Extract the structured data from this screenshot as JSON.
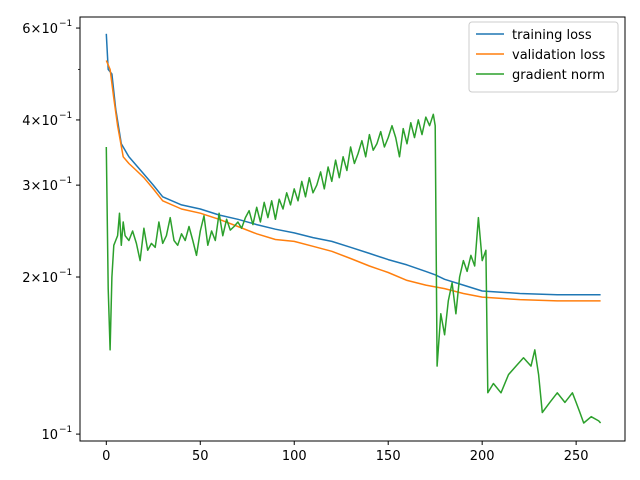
{
  "chart_data": {
    "type": "line",
    "title": "",
    "xlabel": "",
    "ylabel": "",
    "xlim": [
      -14,
      276
    ],
    "ylim": [
      0.097,
      0.63
    ],
    "yscale": "log",
    "grid": false,
    "legend_position": "top-right",
    "x_ticks": [
      {
        "value": 0,
        "label": "0"
      },
      {
        "value": 50,
        "label": "50"
      },
      {
        "value": 100,
        "label": "100"
      },
      {
        "value": 150,
        "label": "150"
      },
      {
        "value": 200,
        "label": "200"
      },
      {
        "value": 250,
        "label": "250"
      }
    ],
    "y_ticks": [
      {
        "value": 0.1,
        "label_base": "10",
        "label_exp": "−1",
        "label_prefix": ""
      },
      {
        "value": 0.2,
        "label_base": "10",
        "label_exp": "−1",
        "label_prefix": "2×"
      },
      {
        "value": 0.3,
        "label_base": "10",
        "label_exp": "−1",
        "label_prefix": "3×"
      },
      {
        "value": 0.4,
        "label_base": "10",
        "label_exp": "−1",
        "label_prefix": "4×"
      },
      {
        "value": 0.6,
        "label_base": "10",
        "label_exp": "−1",
        "label_prefix": "6×"
      }
    ],
    "y_minor_ticks": [
      0.5
    ],
    "series": [
      {
        "name": "training loss",
        "color": "#1f77b4",
        "points": [
          [
            0,
            0.585
          ],
          [
            1,
            0.5
          ],
          [
            3,
            0.49
          ],
          [
            5,
            0.42
          ],
          [
            8,
            0.36
          ],
          [
            12,
            0.34
          ],
          [
            20,
            0.315
          ],
          [
            25,
            0.3
          ],
          [
            30,
            0.285
          ],
          [
            40,
            0.275
          ],
          [
            50,
            0.27
          ],
          [
            60,
            0.263
          ],
          [
            70,
            0.258
          ],
          [
            80,
            0.252
          ],
          [
            90,
            0.247
          ],
          [
            100,
            0.243
          ],
          [
            110,
            0.238
          ],
          [
            120,
            0.234
          ],
          [
            130,
            0.228
          ],
          [
            140,
            0.222
          ],
          [
            150,
            0.216
          ],
          [
            160,
            0.211
          ],
          [
            170,
            0.205
          ],
          [
            175,
            0.202
          ],
          [
            180,
            0.198
          ],
          [
            190,
            0.193
          ],
          [
            200,
            0.188
          ],
          [
            210,
            0.187
          ],
          [
            220,
            0.186
          ],
          [
            240,
            0.185
          ],
          [
            263,
            0.185
          ]
        ]
      },
      {
        "name": "validation loss",
        "color": "#ff7f0e",
        "points": [
          [
            0,
            0.52
          ],
          [
            1,
            0.51
          ],
          [
            2,
            0.5
          ],
          [
            4,
            0.44
          ],
          [
            6,
            0.39
          ],
          [
            9,
            0.34
          ],
          [
            12,
            0.33
          ],
          [
            16,
            0.32
          ],
          [
            20,
            0.31
          ],
          [
            25,
            0.295
          ],
          [
            30,
            0.28
          ],
          [
            40,
            0.27
          ],
          [
            50,
            0.265
          ],
          [
            60,
            0.258
          ],
          [
            70,
            0.25
          ],
          [
            80,
            0.242
          ],
          [
            90,
            0.236
          ],
          [
            100,
            0.234
          ],
          [
            110,
            0.229
          ],
          [
            120,
            0.224
          ],
          [
            130,
            0.217
          ],
          [
            140,
            0.21
          ],
          [
            150,
            0.204
          ],
          [
            160,
            0.197
          ],
          [
            170,
            0.193
          ],
          [
            180,
            0.19
          ],
          [
            190,
            0.186
          ],
          [
            200,
            0.183
          ],
          [
            210,
            0.182
          ],
          [
            220,
            0.181
          ],
          [
            240,
            0.18
          ],
          [
            263,
            0.18
          ]
        ]
      },
      {
        "name": "gradient norm",
        "color": "#2ca02c",
        "points": [
          [
            0,
            0.355
          ],
          [
            1,
            0.19
          ],
          [
            2,
            0.145
          ],
          [
            3,
            0.2
          ],
          [
            4,
            0.23
          ],
          [
            5,
            0.235
          ],
          [
            6,
            0.24
          ],
          [
            7,
            0.265
          ],
          [
            8,
            0.23
          ],
          [
            9,
            0.255
          ],
          [
            10,
            0.24
          ],
          [
            12,
            0.235
          ],
          [
            14,
            0.245
          ],
          [
            16,
            0.232
          ],
          [
            18,
            0.215
          ],
          [
            20,
            0.248
          ],
          [
            22,
            0.225
          ],
          [
            24,
            0.232
          ],
          [
            26,
            0.228
          ],
          [
            28,
            0.255
          ],
          [
            30,
            0.232
          ],
          [
            32,
            0.24
          ],
          [
            34,
            0.26
          ],
          [
            36,
            0.235
          ],
          [
            38,
            0.23
          ],
          [
            40,
            0.242
          ],
          [
            42,
            0.235
          ],
          [
            44,
            0.25
          ],
          [
            46,
            0.235
          ],
          [
            48,
            0.22
          ],
          [
            50,
            0.245
          ],
          [
            52,
            0.262
          ],
          [
            54,
            0.23
          ],
          [
            56,
            0.245
          ],
          [
            58,
            0.235
          ],
          [
            60,
            0.265
          ],
          [
            62,
            0.24
          ],
          [
            64,
            0.258
          ],
          [
            66,
            0.246
          ],
          [
            68,
            0.25
          ],
          [
            70,
            0.255
          ],
          [
            72,
            0.248
          ],
          [
            74,
            0.26
          ],
          [
            76,
            0.268
          ],
          [
            78,
            0.252
          ],
          [
            80,
            0.272
          ],
          [
            82,
            0.255
          ],
          [
            84,
            0.278
          ],
          [
            86,
            0.26
          ],
          [
            88,
            0.28
          ],
          [
            90,
            0.258
          ],
          [
            92,
            0.282
          ],
          [
            94,
            0.27
          ],
          [
            96,
            0.29
          ],
          [
            98,
            0.275
          ],
          [
            100,
            0.295
          ],
          [
            102,
            0.28
          ],
          [
            104,
            0.305
          ],
          [
            106,
            0.285
          ],
          [
            108,
            0.31
          ],
          [
            110,
            0.29
          ],
          [
            112,
            0.3
          ],
          [
            114,
            0.318
          ],
          [
            116,
            0.295
          ],
          [
            118,
            0.325
          ],
          [
            120,
            0.305
          ],
          [
            122,
            0.335
          ],
          [
            124,
            0.31
          ],
          [
            126,
            0.34
          ],
          [
            128,
            0.32
          ],
          [
            130,
            0.355
          ],
          [
            132,
            0.33
          ],
          [
            134,
            0.345
          ],
          [
            136,
            0.365
          ],
          [
            138,
            0.34
          ],
          [
            140,
            0.375
          ],
          [
            142,
            0.35
          ],
          [
            144,
            0.36
          ],
          [
            146,
            0.38
          ],
          [
            148,
            0.355
          ],
          [
            150,
            0.37
          ],
          [
            152,
            0.39
          ],
          [
            154,
            0.37
          ],
          [
            156,
            0.34
          ],
          [
            158,
            0.385
          ],
          [
            160,
            0.36
          ],
          [
            162,
            0.395
          ],
          [
            164,
            0.37
          ],
          [
            166,
            0.4
          ],
          [
            168,
            0.375
          ],
          [
            170,
            0.405
          ],
          [
            172,
            0.39
          ],
          [
            174,
            0.41
          ],
          [
            175,
            0.39
          ],
          [
            176,
            0.135
          ],
          [
            178,
            0.17
          ],
          [
            180,
            0.155
          ],
          [
            182,
            0.18
          ],
          [
            184,
            0.195
          ],
          [
            186,
            0.17
          ],
          [
            188,
            0.2
          ],
          [
            190,
            0.215
          ],
          [
            192,
            0.205
          ],
          [
            194,
            0.22
          ],
          [
            196,
            0.21
          ],
          [
            198,
            0.26
          ],
          [
            200,
            0.215
          ],
          [
            202,
            0.225
          ],
          [
            203,
            0.12
          ],
          [
            206,
            0.125
          ],
          [
            210,
            0.12
          ],
          [
            214,
            0.13
          ],
          [
            218,
            0.135
          ],
          [
            222,
            0.14
          ],
          [
            226,
            0.135
          ],
          [
            228,
            0.145
          ],
          [
            230,
            0.13
          ],
          [
            232,
            0.11
          ],
          [
            236,
            0.115
          ],
          [
            240,
            0.12
          ],
          [
            244,
            0.115
          ],
          [
            248,
            0.12
          ],
          [
            250,
            0.115
          ],
          [
            252,
            0.11
          ],
          [
            254,
            0.105
          ],
          [
            258,
            0.108
          ],
          [
            262,
            0.106
          ],
          [
            263,
            0.105
          ]
        ]
      }
    ]
  }
}
